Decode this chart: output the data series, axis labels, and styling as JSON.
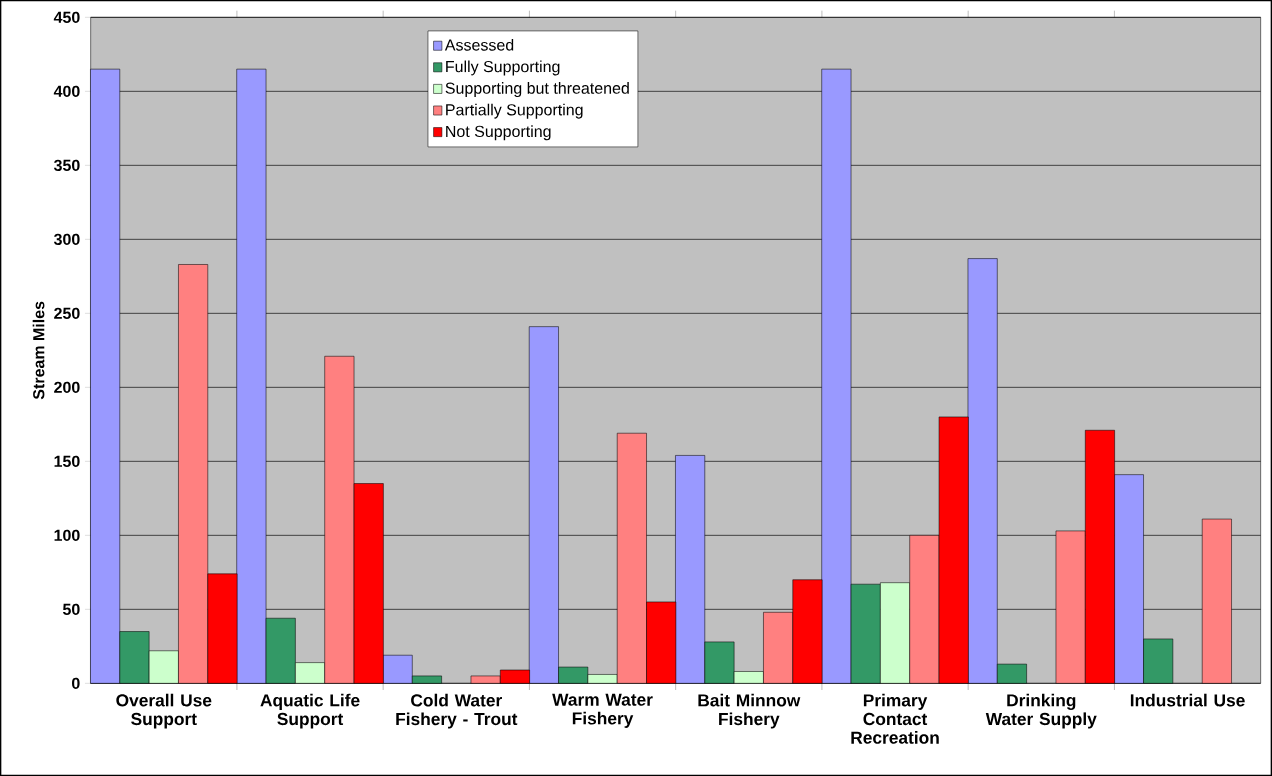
{
  "chart_data": {
    "type": "bar",
    "ylabel": "Stream Miles",
    "categories": [
      "Overall Use Support",
      "Aquatic Life Support",
      "Cold Water Fishery - Trout",
      "Warm Water Fishery",
      "Bait Minnow Fishery",
      "Primary Contact Recreation",
      "Drinking Water Supply",
      "Industrial Use"
    ],
    "series": [
      {
        "name": "Assessed",
        "color": "#9999ff",
        "values": [
          415,
          415,
          19,
          241,
          154,
          415,
          287,
          141
        ]
      },
      {
        "name": "Fully Supporting",
        "color": "#339966",
        "values": [
          35,
          44,
          5,
          11,
          28,
          67,
          13,
          30
        ]
      },
      {
        "name": "Supporting but threatened",
        "color": "#ccffcc",
        "values": [
          22,
          14,
          null,
          6,
          8,
          68,
          null,
          null
        ]
      },
      {
        "name": "Partially Supporting",
        "color": "#ff8080",
        "values": [
          283,
          221,
          5,
          169,
          48,
          100,
          103,
          111
        ]
      },
      {
        "name": "Not Supporting",
        "color": "#ff0000",
        "values": [
          74,
          135,
          9,
          55,
          70,
          180,
          171,
          null
        ]
      }
    ],
    "ylim": [
      0,
      450
    ],
    "yticks": [
      0,
      50,
      100,
      150,
      200,
      250,
      300,
      350,
      400,
      450
    ],
    "grid": "y",
    "legend": "top"
  }
}
